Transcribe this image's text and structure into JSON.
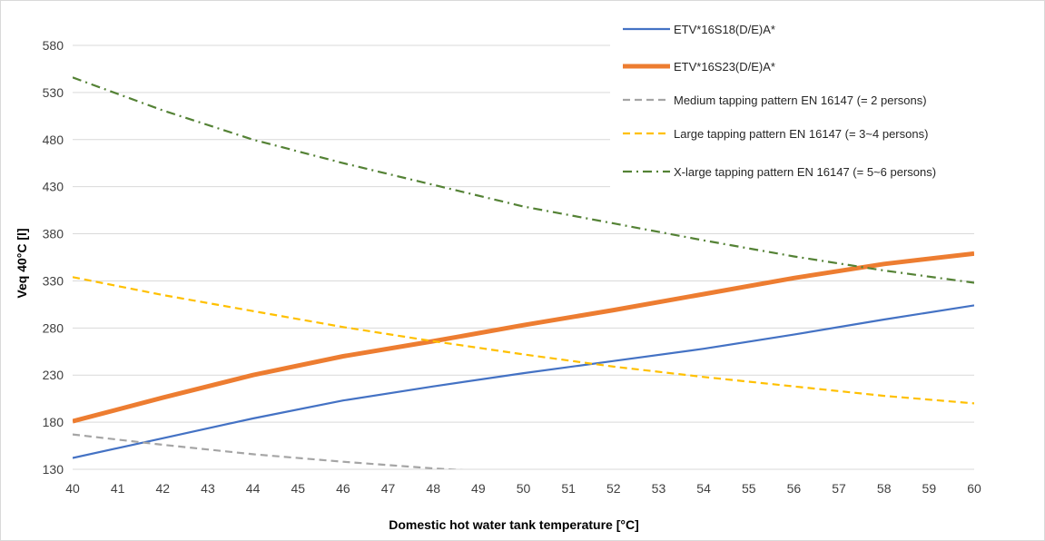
{
  "chart_data": {
    "type": "line",
    "xlabel": "Domestic hot water tank temperature [°C]",
    "ylabel": "Veq 40°C [l]",
    "xlim": [
      40,
      60
    ],
    "ylim": [
      130,
      580
    ],
    "xticks": [
      40,
      41,
      42,
      43,
      44,
      45,
      46,
      47,
      48,
      49,
      50,
      51,
      52,
      53,
      54,
      55,
      56,
      57,
      58,
      59,
      60
    ],
    "yticks": [
      130,
      180,
      230,
      280,
      330,
      380,
      430,
      480,
      530,
      580
    ],
    "grid": "horizontal",
    "legend_position": "top-right",
    "series": [
      {
        "name": "ETV*16S18(D/E)A*",
        "color": "#4472c4",
        "style": "solid",
        "width": "normal",
        "x": [
          40,
          42,
          44,
          46,
          48,
          50,
          52,
          54,
          56,
          58,
          60
        ],
        "y": [
          142,
          163,
          184,
          203,
          218,
          232,
          245,
          258,
          273,
          289,
          304
        ]
      },
      {
        "name": "ETV*16S23(D/E)A*",
        "color": "#ed7d31",
        "style": "solid",
        "width": "thick",
        "x": [
          40,
          42,
          44,
          46,
          48,
          50,
          52,
          54,
          56,
          58,
          60
        ],
        "y": [
          181,
          206,
          230,
          250,
          266,
          283,
          299,
          316,
          333,
          348,
          359
        ]
      },
      {
        "name": "Medium tapping pattern EN 16147 (= 2 persons)",
        "color": "#a5a5a5",
        "style": "dashed",
        "width": "normal",
        "x": [
          40,
          42,
          44,
          46,
          48,
          50
        ],
        "y": [
          167,
          156,
          146,
          138,
          131,
          125
        ]
      },
      {
        "name": "Large tapping pattern EN 16147 (= 3~4 persons)",
        "color": "#ffc000",
        "style": "dashed",
        "width": "normal",
        "x": [
          40,
          42,
          44,
          46,
          48,
          50,
          52,
          54,
          56,
          58,
          60
        ],
        "y": [
          334,
          315,
          298,
          281,
          266,
          252,
          239,
          228,
          218,
          208,
          200
        ]
      },
      {
        "name": "X-large tapping pattern EN 16147 (= 5~6 persons)",
        "color": "#548235",
        "style": "dashdot",
        "width": "normal",
        "x": [
          40,
          42,
          44,
          46,
          48,
          50,
          52,
          54,
          56,
          58,
          60
        ],
        "y": [
          546,
          511,
          480,
          455,
          432,
          409,
          391,
          373,
          356,
          341,
          328
        ]
      }
    ]
  }
}
